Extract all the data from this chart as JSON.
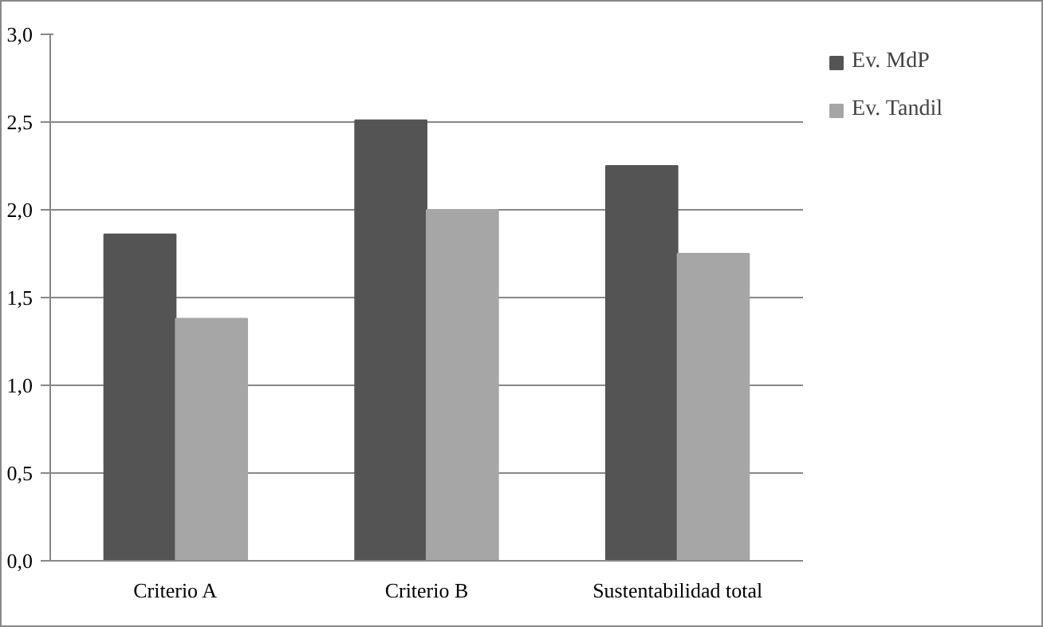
{
  "chart_data": {
    "type": "bar",
    "categories": [
      "Criterio A",
      "Criterio B",
      "Sustentabilidad total"
    ],
    "series": [
      {
        "name": "Ev. MdP",
        "color": "#545454",
        "values": [
          1.86,
          2.51,
          2.25
        ]
      },
      {
        "name": "Ev. Tandil",
        "color": "#a6a6a6",
        "values": [
          1.38,
          2.0,
          1.75
        ]
      }
    ],
    "ylim": [
      0,
      3
    ],
    "yticks": [
      {
        "value": 0,
        "label": "0,0"
      },
      {
        "value": 0.5,
        "label": "0,5"
      },
      {
        "value": 1,
        "label": "1,0"
      },
      {
        "value": 1.5,
        "label": "1,5"
      },
      {
        "value": 2,
        "label": "2,0"
      },
      {
        "value": 2.5,
        "label": "2,5"
      },
      {
        "value": 3,
        "label": "3,0"
      }
    ],
    "grid": "y",
    "legend": "right"
  }
}
